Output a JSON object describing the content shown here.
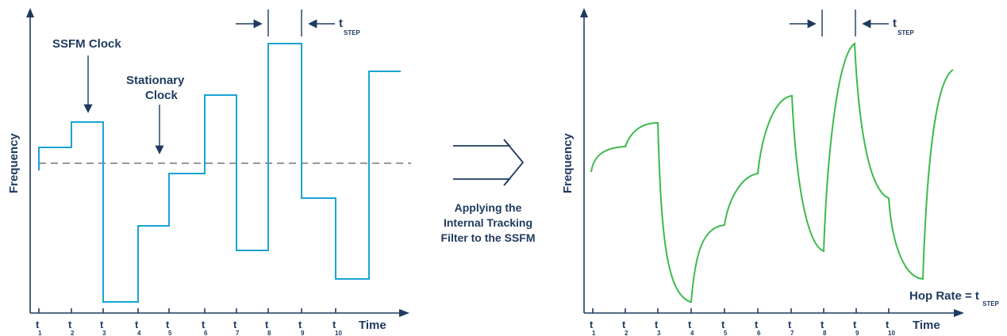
{
  "colors": {
    "axis": "#1f3a5f",
    "ssfm": "#1aa3d4",
    "tracked": "#3dba4e",
    "stationary": "#8a8a8a"
  },
  "left": {
    "ylabel": "Frequency",
    "xlabel": "Time",
    "ssfm_label": "SSFM Clock",
    "stationary_label_1": "Stationary",
    "stationary_label_2": "Clock",
    "tstep_main": "t",
    "tstep_sub": "STEP"
  },
  "middle": {
    "line1": "Applying the",
    "line2": "Internal Tracking",
    "line3": "Filter to the SSFM"
  },
  "right": {
    "ylabel": "Frequency",
    "xlabel": "Time",
    "hop_label": "Hop Rate = t",
    "hop_sub": "STEP",
    "tstep_main": "t",
    "tstep_sub": "STEP"
  },
  "ticks": [
    {
      "main": "t",
      "sub": "1"
    },
    {
      "main": "t",
      "sub": "2"
    },
    {
      "main": "t",
      "sub": "3"
    },
    {
      "main": "t",
      "sub": "4"
    },
    {
      "main": "t",
      "sub": "5"
    },
    {
      "main": "t",
      "sub": "6"
    },
    {
      "main": "t",
      "sub": "7"
    },
    {
      "main": "t",
      "sub": "8"
    },
    {
      "main": "t",
      "sub": "9"
    },
    {
      "main": "t",
      "sub": "10"
    }
  ]
}
